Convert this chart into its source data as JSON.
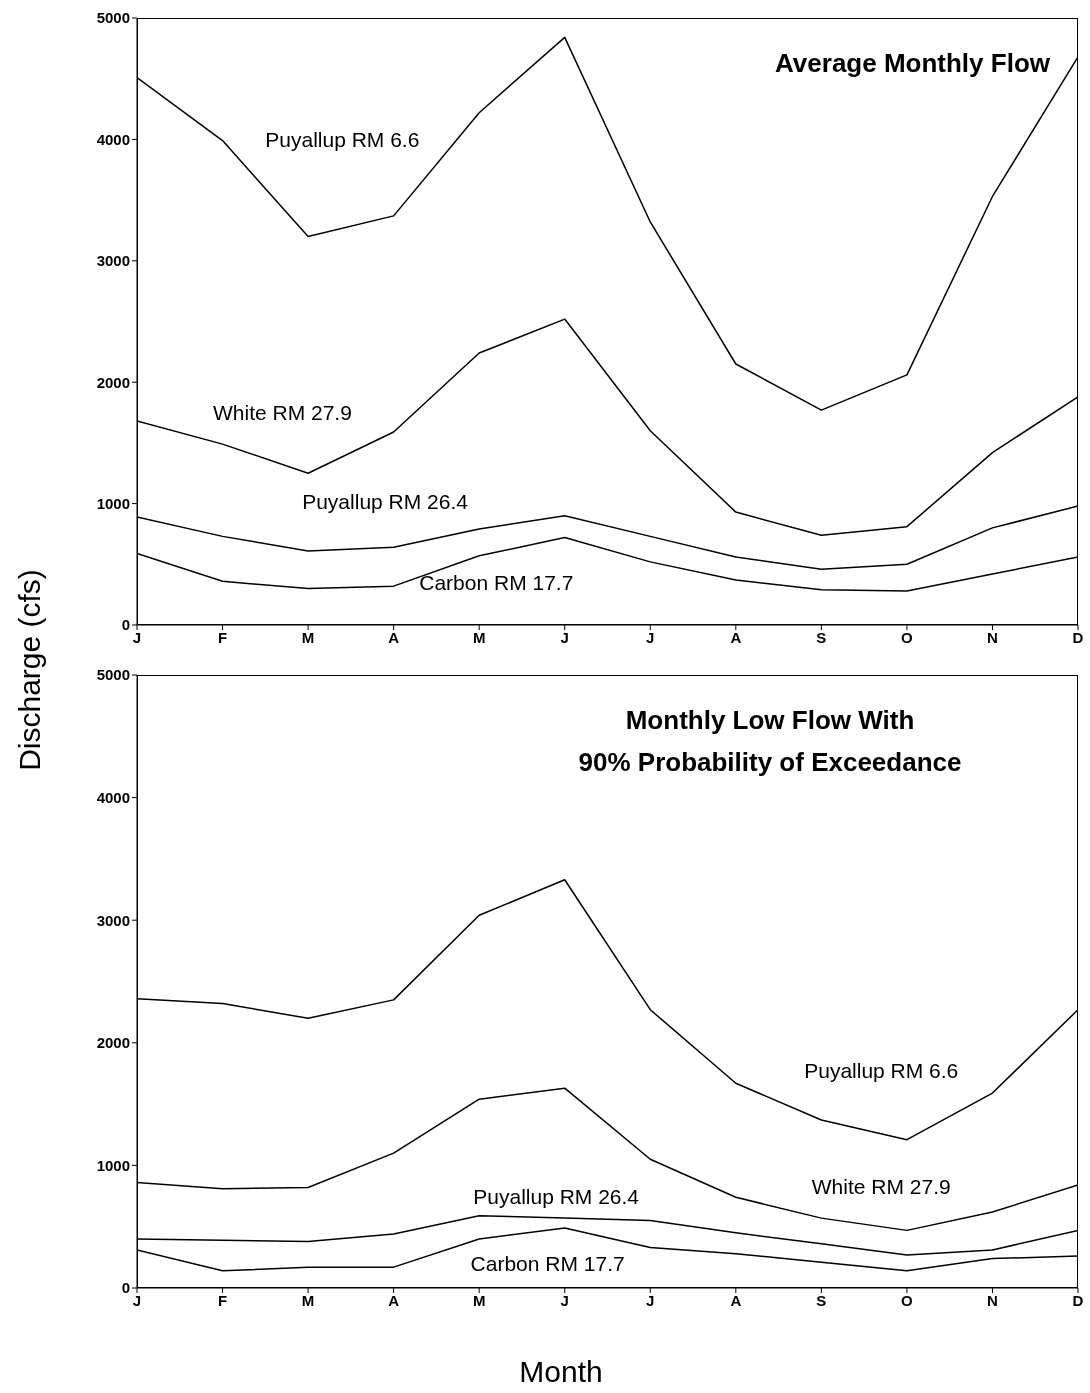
{
  "chart_data": [
    {
      "type": "line",
      "title": "Average Monthly Flow",
      "ylabel": "Discharge (cfs)",
      "categories": [
        "J",
        "F",
        "M",
        "A",
        "M",
        "J",
        "J",
        "A",
        "S",
        "O",
        "N",
        "D"
      ],
      "ylim": [
        0,
        5000
      ],
      "yticks": [
        0,
        1000,
        2000,
        3000,
        4000,
        5000
      ],
      "grid": false,
      "legend": false,
      "marker": "none",
      "line_style": "solid",
      "series": [
        {
          "name": "Puyallup RM 6.6",
          "color": "#000000",
          "values": [
            4510,
            3990,
            3200,
            3370,
            4220,
            4840,
            3320,
            2150,
            1770,
            2060,
            3530,
            4680
          ]
        },
        {
          "name": "White RM 27.9",
          "color": "#000000",
          "values": [
            1680,
            1490,
            1250,
            1590,
            2240,
            2520,
            1600,
            930,
            740,
            810,
            1420,
            1880
          ]
        },
        {
          "name": "Puyallup RM 26.4",
          "color": "#000000",
          "values": [
            890,
            730,
            610,
            640,
            790,
            900,
            730,
            560,
            460,
            500,
            800,
            980
          ]
        },
        {
          "name": "Carbon RM 17.7",
          "color": "#000000",
          "values": [
            590,
            360,
            300,
            320,
            570,
            720,
            520,
            370,
            290,
            280,
            420,
            560
          ]
        }
      ]
    },
    {
      "type": "line",
      "title": "Monthly Low Flow With\n90% Probability of Exceedance",
      "xlabel": "Month",
      "categories": [
        "J",
        "F",
        "M",
        "A",
        "M",
        "J",
        "J",
        "A",
        "S",
        "O",
        "N",
        "D"
      ],
      "ylim": [
        0,
        5000
      ],
      "yticks": [
        0,
        1000,
        2000,
        3000,
        4000,
        5000
      ],
      "grid": false,
      "legend": false,
      "marker": "none",
      "line_style": "solid",
      "series": [
        {
          "name": "Puyallup RM 6.6",
          "color": "#000000",
          "values": [
            2360,
            2320,
            2200,
            2350,
            3040,
            3330,
            2270,
            1670,
            1370,
            1210,
            1590,
            2270
          ]
        },
        {
          "name": "White RM 27.9",
          "color": "#000000",
          "values": [
            860,
            810,
            820,
            1100,
            1540,
            1630,
            1050,
            740,
            570,
            470,
            620,
            840
          ]
        },
        {
          "name": "Puyallup RM 26.4",
          "color": "#000000",
          "values": [
            400,
            390,
            380,
            440,
            590,
            570,
            550,
            450,
            360,
            270,
            310,
            470
          ]
        },
        {
          "name": "Carbon RM 17.7",
          "color": "#000000",
          "values": [
            310,
            140,
            170,
            170,
            400,
            490,
            330,
            280,
            210,
            140,
            240,
            260
          ]
        }
      ]
    }
  ]
}
